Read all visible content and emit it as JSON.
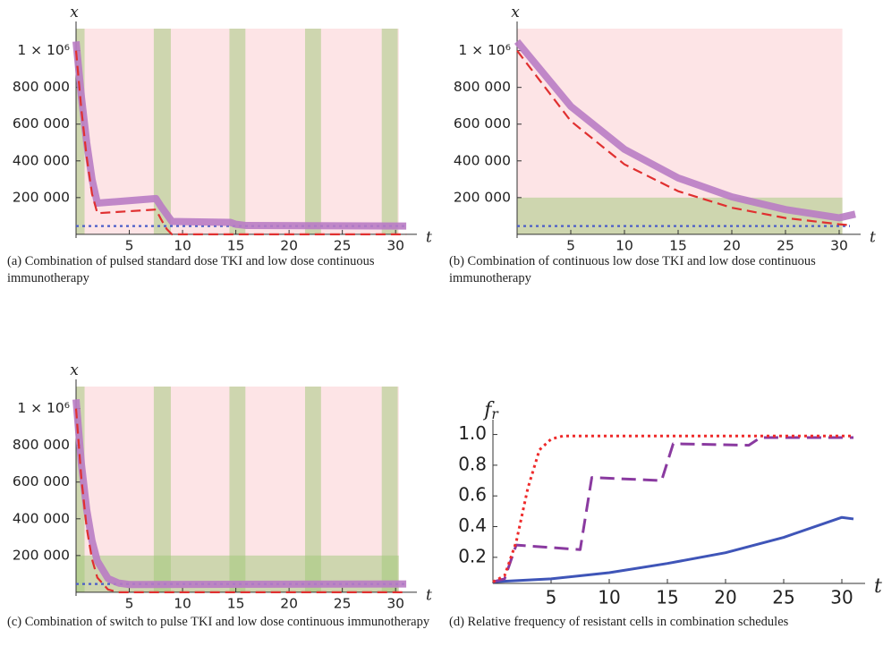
{
  "chart_data": [
    {
      "type": "line",
      "caption": "(a) Combination of pulsed standard dose TKI and low dose continuous immunotherapy",
      "x_label": "t",
      "y_label": "x",
      "xlim": [
        0,
        32
      ],
      "ylim": [
        -20000,
        1120000
      ],
      "xticks": [
        5,
        10,
        15,
        20,
        25,
        30
      ],
      "yticks": [
        {
          "value": 200000,
          "label": "200 000"
        },
        {
          "value": 400000,
          "label": "400 000"
        },
        {
          "value": 600000,
          "label": "600 000"
        },
        {
          "value": 800000,
          "label": "800 000"
        },
        {
          "value": 1000000,
          "label": "1 × 10⁶"
        }
      ],
      "shaded_regions": [
        {
          "x": [
            0,
            30.3
          ],
          "y": [
            0,
            1120000
          ],
          "color": "#fde4e6"
        },
        {
          "x": [
            0,
            0.8
          ],
          "y": [
            0,
            1120000
          ],
          "color": "rgba(160,200,120,0.5)"
        },
        {
          "x": [
            7.3,
            8.9
          ],
          "y": [
            0,
            1120000
          ],
          "color": "rgba(160,200,120,0.5)"
        },
        {
          "x": [
            14.4,
            15.9
          ],
          "y": [
            0,
            1120000
          ],
          "color": "rgba(160,200,120,0.5)"
        },
        {
          "x": [
            21.5,
            23
          ],
          "y": [
            0,
            1120000
          ],
          "color": "rgba(160,200,120,0.5)"
        },
        {
          "x": [
            28.7,
            30.2
          ],
          "y": [
            0,
            1120000
          ],
          "color": "rgba(160,200,120,0.5)"
        }
      ],
      "series": [
        {
          "color": "#4a5cc8",
          "line_style": "dotted",
          "x": [
            0,
            31
          ],
          "values": [
            45000,
            45000
          ]
        },
        {
          "color": "#b97cc4",
          "line_style": "thick",
          "x": [
            0,
            0.5,
            1,
            1.5,
            2,
            7.5,
            8,
            8.5,
            9,
            14.5,
            15,
            16,
            31
          ],
          "values": [
            1050000,
            750000,
            500000,
            300000,
            170000,
            195000,
            150000,
            110000,
            70000,
            65000,
            55000,
            48000,
            45000
          ]
        },
        {
          "color": "#e03030",
          "line_style": "dashed",
          "x": [
            0,
            0.5,
            1,
            1.5,
            2,
            7.5,
            8,
            8.5,
            9,
            31
          ],
          "values": [
            1000000,
            680000,
            420000,
            220000,
            115000,
            135000,
            80000,
            30000,
            0,
            0
          ]
        }
      ]
    },
    {
      "type": "line",
      "caption": "(b) Combination of continuous low dose TKI and low dose continuous immunotherapy",
      "x_label": "t",
      "y_label": "x",
      "xlim": [
        0,
        32
      ],
      "ylim": [
        -20000,
        1120000
      ],
      "xticks": [
        5,
        10,
        15,
        20,
        25,
        30
      ],
      "yticks": [
        {
          "value": 200000,
          "label": "200 000"
        },
        {
          "value": 400000,
          "label": "400 000"
        },
        {
          "value": 600000,
          "label": "600 000"
        },
        {
          "value": 800000,
          "label": "800 000"
        },
        {
          "value": 1000000,
          "label": "1 × 10⁶"
        }
      ],
      "shaded_regions": [
        {
          "x": [
            0,
            30.3
          ],
          "y": [
            0,
            1120000
          ],
          "color": "#fde4e6"
        },
        {
          "x": [
            0,
            30.3
          ],
          "y": [
            0,
            200000
          ],
          "color": "rgba(160,200,120,0.5)"
        }
      ],
      "series": [
        {
          "color": "#4a5cc8",
          "line_style": "dotted",
          "x": [
            0,
            31
          ],
          "values": [
            45000,
            45000
          ]
        },
        {
          "color": "#b97cc4",
          "line_style": "thick",
          "x": [
            0,
            5,
            10,
            15,
            20,
            25,
            30,
            31.5
          ],
          "values": [
            1050000,
            697000,
            463000,
            307000,
            204000,
            135000,
            90000,
            110000
          ]
        },
        {
          "color": "#e03030",
          "line_style": "dashed",
          "x": [
            0,
            5,
            10,
            15,
            20,
            25,
            30,
            31
          ],
          "values": [
            1000000,
            617000,
            381000,
            235000,
            145000,
            89000,
            55000,
            50000
          ]
        }
      ]
    },
    {
      "type": "line",
      "caption": "(c) Combination of switch to pulse TKI and low dose continuous immunotherapy",
      "x_label": "t",
      "y_label": "x",
      "xlim": [
        0,
        32
      ],
      "ylim": [
        -20000,
        1120000
      ],
      "xticks": [
        5,
        10,
        15,
        20,
        25,
        30
      ],
      "yticks": [
        {
          "value": 200000,
          "label": "200 000"
        },
        {
          "value": 400000,
          "label": "400 000"
        },
        {
          "value": 600000,
          "label": "600 000"
        },
        {
          "value": 800000,
          "label": "800 000"
        },
        {
          "value": 1000000,
          "label": "1 × 10⁶"
        }
      ],
      "shaded_regions": [
        {
          "x": [
            0,
            30.3
          ],
          "y": [
            0,
            1120000
          ],
          "color": "#fde4e6"
        },
        {
          "x": [
            0,
            30.3
          ],
          "y": [
            0,
            200000
          ],
          "color": "rgba(160,200,120,0.5)"
        },
        {
          "x": [
            0,
            0.8
          ],
          "y": [
            0,
            1120000
          ],
          "color": "rgba(160,200,120,0.5)"
        },
        {
          "x": [
            7.3,
            8.9
          ],
          "y": [
            0,
            1120000
          ],
          "color": "rgba(160,200,120,0.5)"
        },
        {
          "x": [
            14.4,
            15.9
          ],
          "y": [
            0,
            1120000
          ],
          "color": "rgba(160,200,120,0.5)"
        },
        {
          "x": [
            21.5,
            23
          ],
          "y": [
            0,
            1120000
          ],
          "color": "rgba(160,200,120,0.5)"
        },
        {
          "x": [
            28.7,
            30.2
          ],
          "y": [
            0,
            1120000
          ],
          "color": "rgba(160,200,120,0.5)"
        }
      ],
      "series": [
        {
          "color": "#4a5cc8",
          "line_style": "dotted",
          "x": [
            0,
            31
          ],
          "values": [
            45000,
            45000
          ]
        },
        {
          "color": "#b97cc4",
          "line_style": "thick",
          "x": [
            0,
            0.5,
            1,
            1.5,
            2,
            3,
            4,
            5,
            31
          ],
          "values": [
            1050000,
            700000,
            450000,
            280000,
            170000,
            75000,
            50000,
            42000,
            45000
          ]
        },
        {
          "color": "#e03030",
          "line_style": "dashed",
          "x": [
            0,
            0.5,
            1,
            1.5,
            2,
            3,
            4,
            31
          ],
          "values": [
            1000000,
            620000,
            350000,
            180000,
            80000,
            15000,
            0,
            0
          ]
        }
      ]
    },
    {
      "type": "line",
      "caption": "(d) Relative frequency of resistant cells in combination schedules",
      "x_label": "t",
      "y_label": "f",
      "y_label_subscript": "r",
      "xlim": [
        0,
        32
      ],
      "ylim": [
        0.03,
        1.05
      ],
      "xticks": [
        5,
        10,
        15,
        20,
        25,
        30
      ],
      "yticks": [
        0.2,
        0.4,
        0.6,
        0.8,
        {
          "value": 1.0,
          "label": "1.0"
        }
      ],
      "series": [
        {
          "color": "#3f55b8",
          "line_style": "solid",
          "x": [
            0,
            5,
            10,
            15,
            20,
            25,
            30,
            31
          ],
          "values": [
            0.04,
            0.06,
            0.1,
            0.16,
            0.23,
            0.33,
            0.46,
            0.45
          ]
        },
        {
          "color": "#8a3aa0",
          "line_style": "long-dashed",
          "x": [
            0,
            1,
            2,
            7.5,
            8.5,
            14.5,
            15.5,
            22,
            23,
            31
          ],
          "values": [
            0.04,
            0.06,
            0.28,
            0.25,
            0.72,
            0.7,
            0.94,
            0.93,
            0.98,
            0.98
          ]
        },
        {
          "color": "#ee2a2a",
          "line_style": "dotted",
          "x": [
            0,
            1,
            2,
            3,
            4,
            5,
            6,
            31
          ],
          "values": [
            0.04,
            0.08,
            0.3,
            0.65,
            0.9,
            0.97,
            0.99,
            0.99
          ]
        }
      ]
    }
  ]
}
